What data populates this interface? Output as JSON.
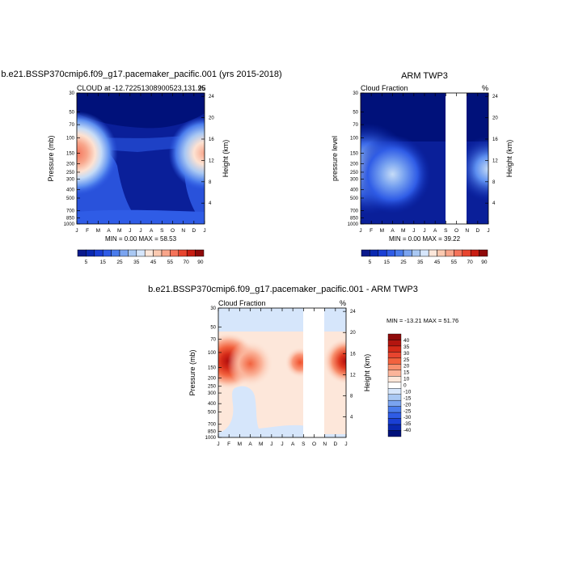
{
  "chart_data": [
    {
      "type": "heatmap",
      "title": "b.e21.BSSP370cmip6.f09_g17.pacemaker_pacific.001 (yrs 2015-2018)",
      "subtitle_left": "CLOUD at -12.72251308900523,131.25",
      "subtitle_right": "%",
      "ylabel": "Pressure (mb)",
      "ylabel_right": "Height (km)",
      "x_ticks": [
        "J",
        "F",
        "M",
        "A",
        "M",
        "J",
        "J",
        "A",
        "S",
        "O",
        "N",
        "D",
        "J"
      ],
      "y_ticks": [
        "30",
        "50",
        "70",
        "100",
        "150",
        "200",
        "250",
        "300",
        "400",
        "500",
        "700",
        "850",
        "1000"
      ],
      "y_ticks_right": [
        "24",
        "20",
        "16",
        "12",
        "8",
        "4"
      ],
      "stats": "MIN =   0.00 MAX =  58.53",
      "colorbar_labels": [
        "5",
        "15",
        "25",
        "35",
        "45",
        "55",
        "70",
        "90"
      ],
      "missing_months": []
    },
    {
      "type": "heatmap",
      "title": "ARM TWP3",
      "subtitle_left": "Cloud Fraction",
      "subtitle_right": "%",
      "ylabel": "pressure level",
      "ylabel_right": "Height (km)",
      "x_ticks": [
        "J",
        "F",
        "M",
        "A",
        "M",
        "J",
        "J",
        "A",
        "S",
        "O",
        "N",
        "D",
        "J"
      ],
      "y_ticks": [
        "30",
        "50",
        "70",
        "100",
        "150",
        "200",
        "250",
        "300",
        "400",
        "500",
        "700",
        "850",
        "1000"
      ],
      "y_ticks_right": [
        "24",
        "20",
        "16",
        "12",
        "8",
        "4"
      ],
      "stats": "MIN =   0.00 MAX =  39.22",
      "colorbar_labels": [
        "5",
        "15",
        "25",
        "35",
        "45",
        "55",
        "70",
        "90"
      ],
      "missing_months": [
        "O"
      ]
    },
    {
      "type": "heatmap",
      "title": "b.e21.BSSP370cmip6.f09_g17.pacemaker_pacific.001 - ARM TWP3",
      "subtitle_left": "Cloud Fraction",
      "subtitle_right": "%",
      "ylabel": "Pressure (mb)",
      "ylabel_right": "Height (km)",
      "x_ticks": [
        "J",
        "F",
        "M",
        "A",
        "M",
        "J",
        "J",
        "A",
        "S",
        "O",
        "N",
        "D",
        "J"
      ],
      "y_ticks": [
        "30",
        "50",
        "70",
        "100",
        "150",
        "200",
        "250",
        "300",
        "400",
        "500",
        "700",
        "850",
        "1000"
      ],
      "y_ticks_right": [
        "24",
        "20",
        "16",
        "12",
        "8",
        "4"
      ],
      "stats": "MIN = -13.21 MAX =  51.76",
      "colorbar_labels": [
        "40",
        "35",
        "30",
        "25",
        "20",
        "15",
        "10",
        "0",
        "-10",
        "-15",
        "-20",
        "-25",
        "-30",
        "-35",
        "-40"
      ],
      "missing_months": [
        "O"
      ]
    }
  ]
}
